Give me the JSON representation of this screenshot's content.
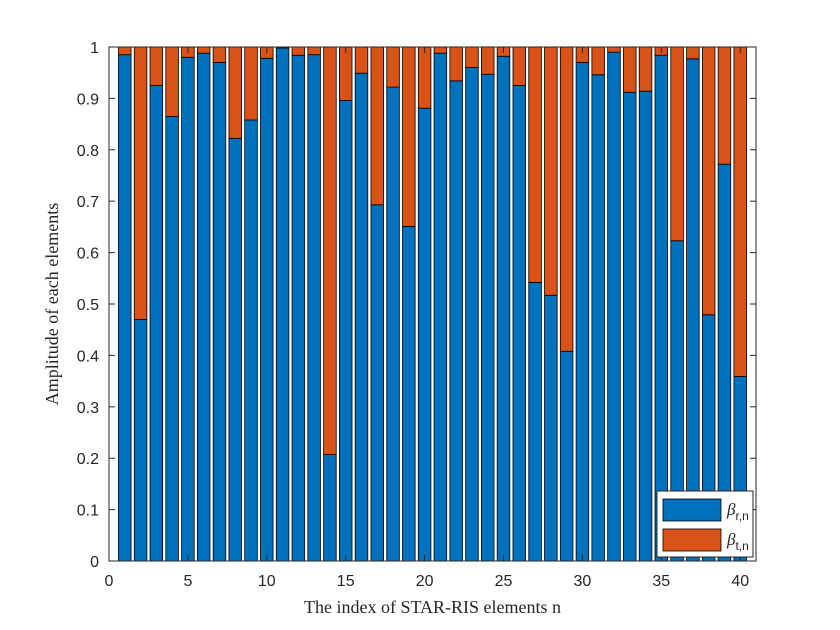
{
  "chart_data": {
    "type": "bar",
    "stacked": true,
    "xlabel": "The index of STAR-RIS elements n",
    "ylabel": "Amplitude of each elements",
    "xlim": [
      0,
      41
    ],
    "ylim": [
      0,
      1
    ],
    "xticks": [
      "0",
      "5",
      "10",
      "15",
      "20",
      "25",
      "30",
      "35",
      "40"
    ],
    "xtick_values": [
      0,
      5,
      10,
      15,
      20,
      25,
      30,
      35,
      40
    ],
    "yticks": [
      "0",
      "0.1",
      "0.2",
      "0.3",
      "0.4",
      "0.5",
      "0.6",
      "0.7",
      "0.8",
      "0.9",
      "1"
    ],
    "ytick_values": [
      0,
      0.1,
      0.2,
      0.3,
      0.4,
      0.5,
      0.6,
      0.7,
      0.8,
      0.9,
      1
    ],
    "grid": false,
    "legend_position": "bottom-right",
    "x": [
      1,
      2,
      3,
      4,
      5,
      6,
      7,
      8,
      9,
      10,
      11,
      12,
      13,
      14,
      15,
      16,
      17,
      18,
      19,
      20,
      21,
      22,
      23,
      24,
      25,
      26,
      27,
      28,
      29,
      30,
      31,
      32,
      33,
      34,
      35,
      36,
      37,
      38,
      39,
      40
    ],
    "series": [
      {
        "name": "β_{r,n}",
        "base": "β",
        "sub": "r,n",
        "color": "#0072BD",
        "values": [
          0.985,
          0.47,
          0.925,
          0.865,
          0.98,
          0.988,
          0.97,
          0.822,
          0.858,
          0.978,
          0.998,
          0.984,
          0.985,
          0.207,
          0.896,
          0.949,
          0.693,
          0.922,
          0.651,
          0.881,
          0.988,
          0.934,
          0.96,
          0.947,
          0.982,
          0.925,
          0.542,
          0.517,
          0.408,
          0.97,
          0.946,
          0.99,
          0.912,
          0.914,
          0.984,
          0.623,
          0.977,
          0.479,
          0.772,
          0.359
        ]
      },
      {
        "name": "β_{t,n}",
        "base": "β",
        "sub": "t,n",
        "color": "#D95319",
        "values": [
          0.015,
          0.53,
          0.075,
          0.135,
          0.02,
          0.012,
          0.03,
          0.178,
          0.142,
          0.022,
          0.002,
          0.016,
          0.015,
          0.793,
          0.104,
          0.051,
          0.307,
          0.078,
          0.349,
          0.119,
          0.012,
          0.066,
          0.04,
          0.053,
          0.018,
          0.075,
          0.458,
          0.483,
          0.592,
          0.03,
          0.054,
          0.01,
          0.088,
          0.086,
          0.016,
          0.377,
          0.023,
          0.521,
          0.228,
          0.641
        ]
      }
    ]
  }
}
